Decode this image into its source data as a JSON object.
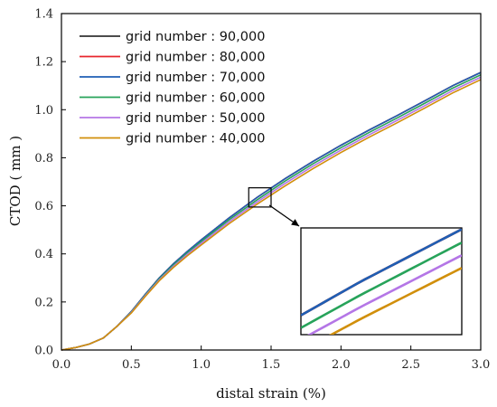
{
  "chart_data": {
    "type": "line",
    "title": "",
    "xlabel": "distal strain (%)",
    "ylabel": "CTOD ( mm )",
    "xlim": [
      0.0,
      3.0
    ],
    "ylim": [
      0.0,
      1.4
    ],
    "xticks": [
      "0.0",
      "0.5",
      "1.0",
      "1.5",
      "2.0",
      "2.5",
      "3.0"
    ],
    "yticks": [
      "0.0",
      "0.2",
      "0.4",
      "0.6",
      "0.8",
      "1.0",
      "1.2",
      "1.4"
    ],
    "legend_position": "top-left",
    "grid": false,
    "inset": {
      "zoom_x_range": [
        1.34,
        1.5
      ],
      "zoom_y_range": [
        0.595,
        0.675
      ],
      "placement": "lower-right"
    },
    "series": [
      {
        "name": "grid number : 90,000",
        "color": "#333333",
        "x": [
          0.0,
          0.1,
          0.2,
          0.3,
          0.4,
          0.5,
          0.6,
          0.7,
          0.8,
          0.9,
          1.0,
          1.2,
          1.4,
          1.6,
          1.8,
          2.0,
          2.2,
          2.4,
          2.6,
          2.8,
          3.0
        ],
        "y": [
          0.0,
          0.01,
          0.025,
          0.05,
          0.1,
          0.16,
          0.232,
          0.3,
          0.358,
          0.41,
          0.458,
          0.55,
          0.635,
          0.713,
          0.785,
          0.852,
          0.915,
          0.975,
          1.037,
          1.1,
          1.155
        ]
      },
      {
        "name": "grid number : 80,000",
        "color": "#e8262d",
        "x": [
          0.0,
          0.1,
          0.2,
          0.3,
          0.4,
          0.5,
          0.6,
          0.7,
          0.8,
          0.9,
          1.0,
          1.2,
          1.4,
          1.6,
          1.8,
          2.0,
          2.2,
          2.4,
          2.6,
          2.8,
          3.0
        ],
        "y": [
          0.0,
          0.01,
          0.025,
          0.05,
          0.1,
          0.16,
          0.232,
          0.3,
          0.358,
          0.41,
          0.458,
          0.55,
          0.635,
          0.713,
          0.785,
          0.852,
          0.915,
          0.975,
          1.037,
          1.1,
          1.155
        ]
      },
      {
        "name": "grid number : 70,000",
        "color": "#1f5fb4",
        "x": [
          0.0,
          0.1,
          0.2,
          0.3,
          0.4,
          0.5,
          0.6,
          0.7,
          0.8,
          0.9,
          1.0,
          1.2,
          1.4,
          1.6,
          1.8,
          2.0,
          2.2,
          2.4,
          2.6,
          2.8,
          3.0
        ],
        "y": [
          0.0,
          0.01,
          0.025,
          0.05,
          0.1,
          0.16,
          0.232,
          0.3,
          0.358,
          0.41,
          0.458,
          0.55,
          0.635,
          0.713,
          0.785,
          0.852,
          0.915,
          0.975,
          1.037,
          1.1,
          1.155
        ]
      },
      {
        "name": "grid number : 60,000",
        "color": "#27a35a",
        "x": [
          0.0,
          0.1,
          0.2,
          0.3,
          0.4,
          0.5,
          0.6,
          0.7,
          0.8,
          0.9,
          1.0,
          1.2,
          1.4,
          1.6,
          1.8,
          2.0,
          2.2,
          2.4,
          2.6,
          2.8,
          3.0
        ],
        "y": [
          0.0,
          0.01,
          0.025,
          0.05,
          0.1,
          0.158,
          0.229,
          0.296,
          0.353,
          0.404,
          0.451,
          0.542,
          0.625,
          0.703,
          0.775,
          0.842,
          0.905,
          0.965,
          1.027,
          1.09,
          1.145
        ]
      },
      {
        "name": "grid number : 50,000",
        "color": "#b476e6",
        "x": [
          0.0,
          0.1,
          0.2,
          0.3,
          0.4,
          0.5,
          0.6,
          0.7,
          0.8,
          0.9,
          1.0,
          1.2,
          1.4,
          1.6,
          1.8,
          2.0,
          2.2,
          2.4,
          2.6,
          2.8,
          3.0
        ],
        "y": [
          0.0,
          0.01,
          0.025,
          0.05,
          0.1,
          0.156,
          0.226,
          0.292,
          0.348,
          0.398,
          0.444,
          0.534,
          0.616,
          0.693,
          0.765,
          0.832,
          0.895,
          0.955,
          1.017,
          1.08,
          1.135
        ]
      },
      {
        "name": "grid number : 40,000",
        "color": "#d18f0b",
        "x": [
          0.0,
          0.1,
          0.2,
          0.3,
          0.4,
          0.5,
          0.6,
          0.7,
          0.8,
          0.9,
          1.0,
          1.2,
          1.4,
          1.6,
          1.8,
          2.0,
          2.2,
          2.4,
          2.6,
          2.8,
          3.0
        ],
        "y": [
          0.0,
          0.01,
          0.025,
          0.05,
          0.1,
          0.154,
          0.223,
          0.288,
          0.343,
          0.392,
          0.437,
          0.526,
          0.607,
          0.683,
          0.755,
          0.822,
          0.885,
          0.945,
          1.007,
          1.07,
          1.125
        ]
      }
    ]
  }
}
